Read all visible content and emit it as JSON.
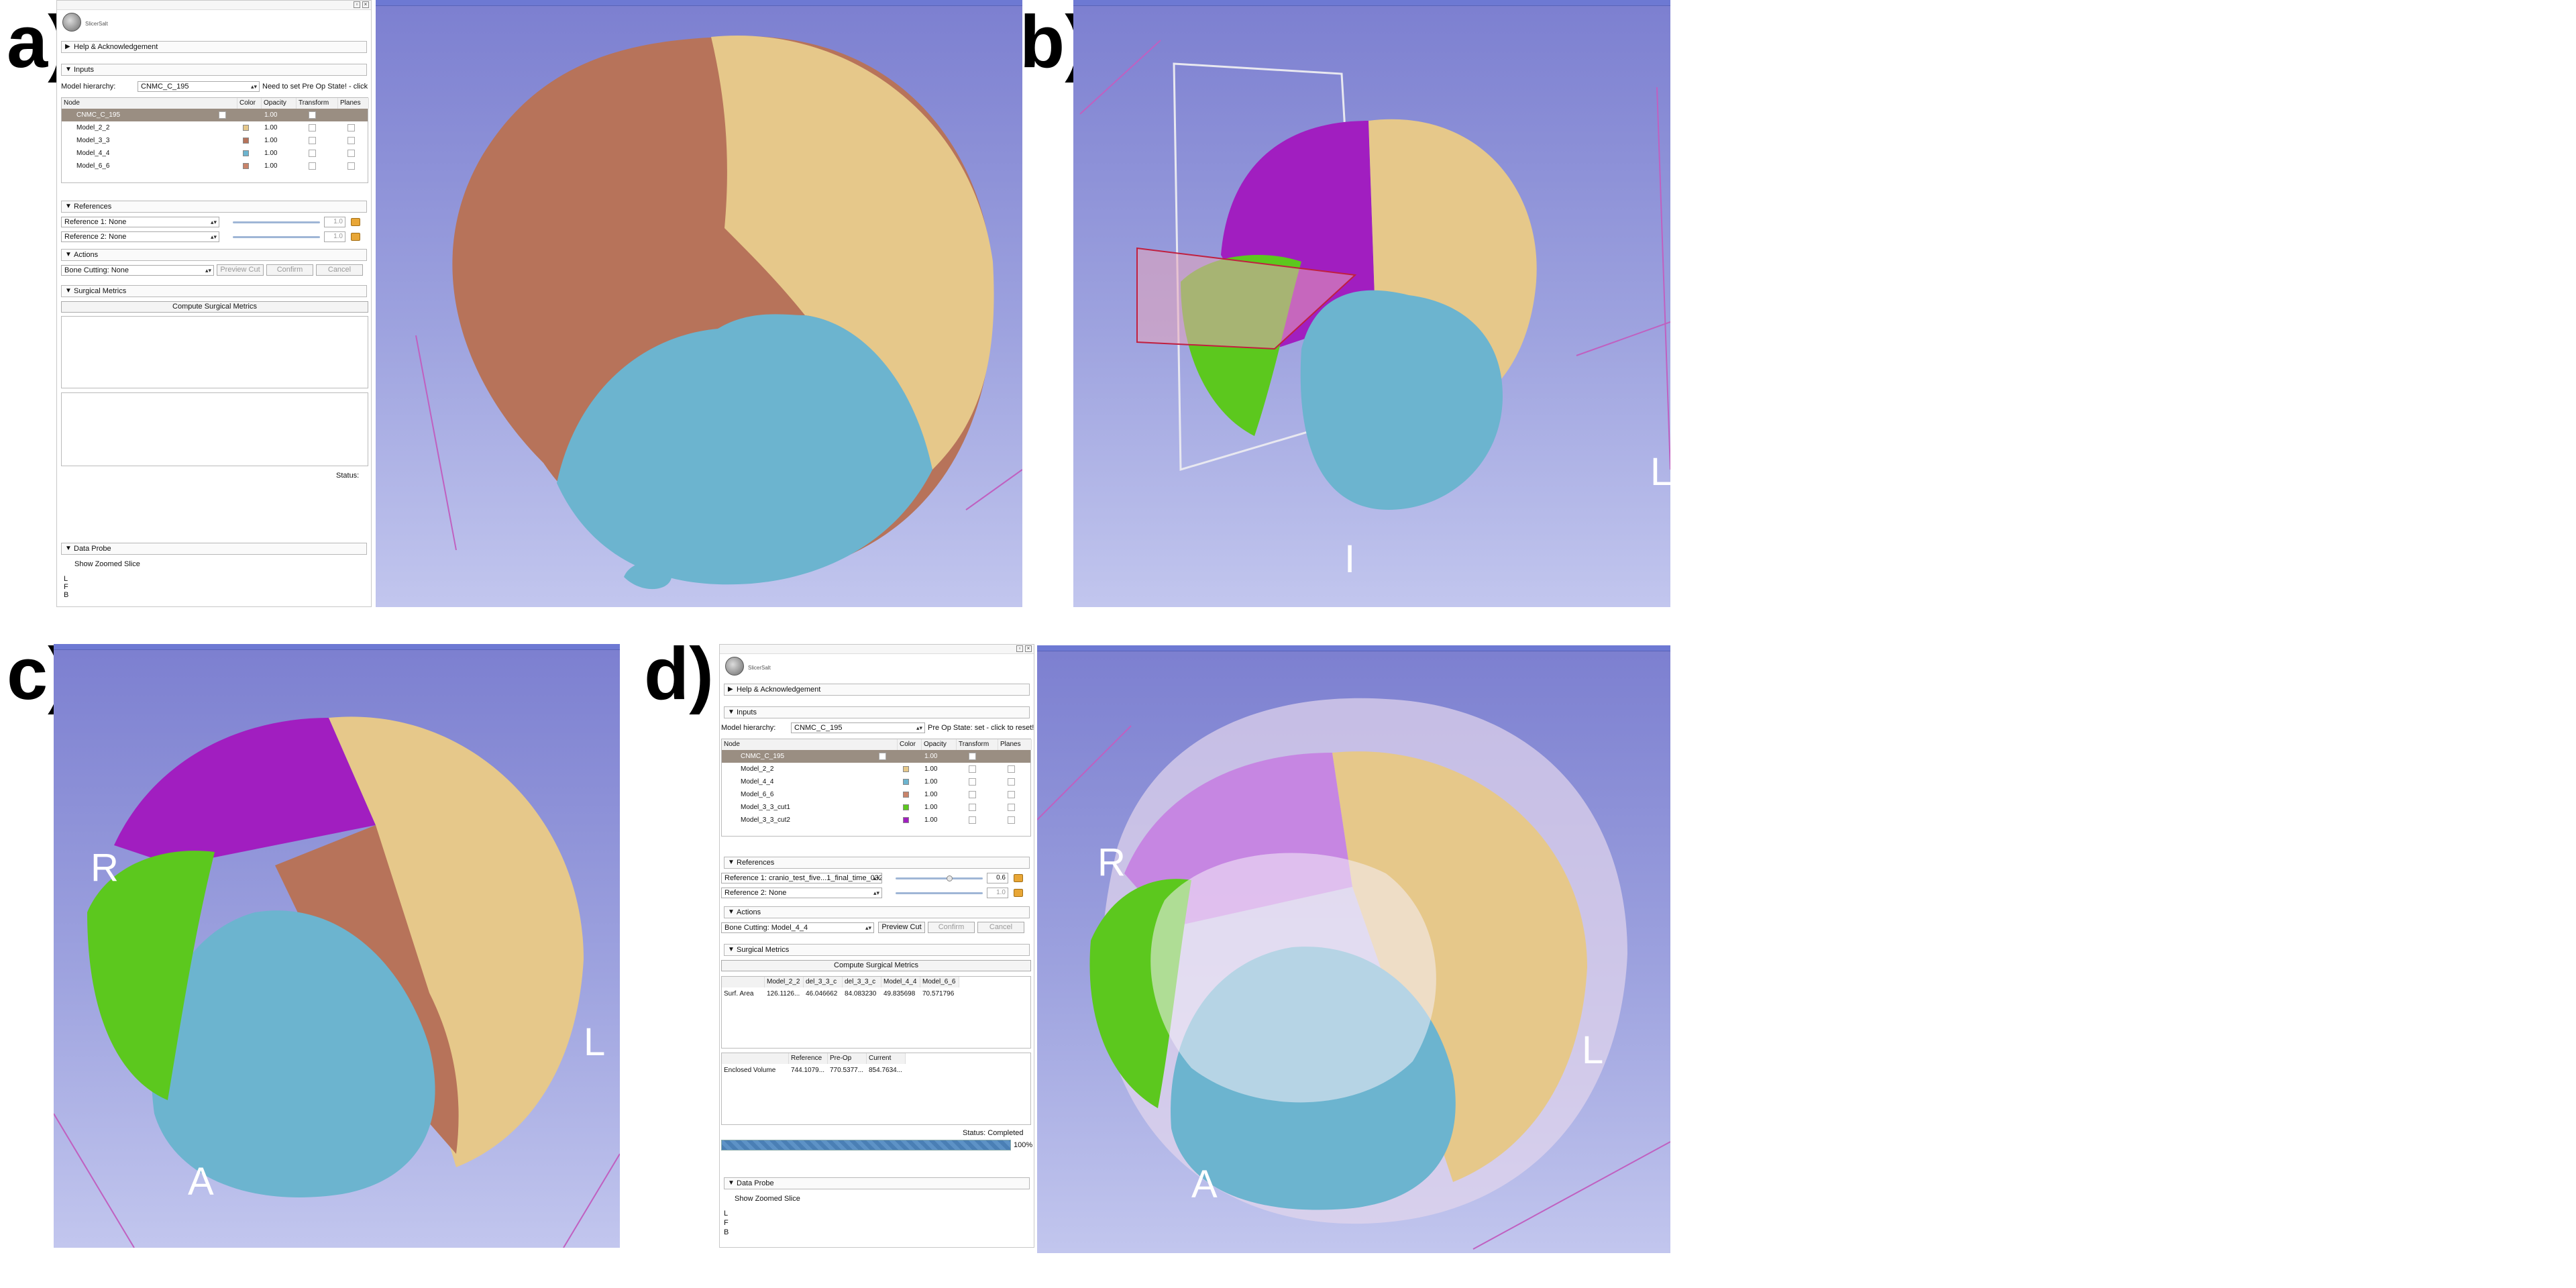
{
  "panel_labels": {
    "a": "a)",
    "b": "b)",
    "c": "c)",
    "d": "d)"
  },
  "colors": {
    "beige": "#e6c88a",
    "brown": "#b7735a",
    "blue": "#6cb4cf",
    "green": "#5cc81e",
    "purple": "#a11ec0",
    "selected_row": "#9a8e82",
    "view_top": "#6d79d3",
    "view_bottom": "#c2c6ee",
    "progress": "#4a7fb5"
  },
  "panel_a": {
    "logo_text": "SlicerSalt",
    "sections": {
      "help": "Help & Acknowledgement",
      "inputs": "Inputs",
      "references": "References",
      "actions": "Actions",
      "surgical_metrics": "Surgical Metrics",
      "data_probe": "Data Probe"
    },
    "model_hierarchy_label": "Model hierarchy:",
    "model_hierarchy_value": "CNMC_C_195",
    "pre_op_state": "Need to set Pre Op State! - click",
    "table_headers": [
      "Node",
      "Color",
      "Opacity",
      "Transform",
      "Planes"
    ],
    "rows": [
      {
        "name": "CNMC_C_195",
        "opacity": "1.00",
        "color": ""
      },
      {
        "name": "Model_2_2",
        "opacity": "1.00",
        "color": "#e6c88a"
      },
      {
        "name": "Model_3_3",
        "opacity": "1.00",
        "color": "#b7735a"
      },
      {
        "name": "Model_4_4",
        "opacity": "1.00",
        "color": "#6cb4cf"
      },
      {
        "name": "Model_6_6",
        "opacity": "1.00",
        "color": "#c9846a"
      }
    ],
    "reference1": "Reference 1: None",
    "reference2": "Reference 2: None",
    "ref_value1": "1.0",
    "ref_value2": "1.0",
    "bone_cutting": "Bone Cutting: None",
    "preview_cut": "Preview Cut",
    "confirm": "Confirm",
    "cancel": "Cancel",
    "compute": "Compute Surgical Metrics",
    "status": "Status:",
    "show_zoomed": "Show Zoomed Slice",
    "probe_lines": [
      "L",
      "F",
      "B"
    ]
  },
  "panel_b": {
    "label_L": "L",
    "label_I": "I"
  },
  "panel_c": {
    "label_L": "L",
    "label_A": "A",
    "label_R": "R"
  },
  "panel_d": {
    "logo_text": "SlicerSalt",
    "sections": {
      "help": "Help & Acknowledgement",
      "inputs": "Inputs",
      "references": "References",
      "actions": "Actions",
      "surgical_metrics": "Surgical Metrics",
      "data_probe": "Data Probe"
    },
    "model_hierarchy_label": "Model hierarchy:",
    "model_hierarchy_value": "CNMC_C_195",
    "pre_op_state": "Pre Op State: set - click to reset!",
    "table_headers": [
      "Node",
      "Color",
      "Opacity",
      "Transform",
      "Planes"
    ],
    "rows": [
      {
        "name": "CNMC_C_195",
        "opacity": "1.00",
        "color": ""
      },
      {
        "name": "Model_2_2",
        "opacity": "1.00",
        "color": "#e6c88a"
      },
      {
        "name": "Model_4_4",
        "opacity": "1.00",
        "color": "#6cb4cf"
      },
      {
        "name": "Model_6_6",
        "opacity": "1.00",
        "color": "#c9846a"
      },
      {
        "name": "Model_3_3_cut1",
        "opacity": "1.00",
        "color": "#5cc81e"
      },
      {
        "name": "Model_3_3_cut2",
        "opacity": "1.00",
        "color": "#a11ec0"
      }
    ],
    "reference1": "Reference 1: cranio_test_five...1_final_time_032",
    "reference2": "Reference 2: None",
    "ref_value1": "0.6",
    "ref_value2": "1.0",
    "bone_cutting": "Bone Cutting: Model_4_4",
    "preview_cut": "Preview Cut",
    "confirm": "Confirm",
    "cancel": "Cancel",
    "compute": "Compute Surgical Metrics",
    "metrics_headers": [
      "",
      "Model_2_2",
      "del_3_3_c",
      "del_3_3_c",
      "Model_4_4",
      "Model_6_6"
    ],
    "metrics_row": [
      "Surf. Area",
      "126.1126...",
      "46.046662",
      "84.083230",
      "49.835698",
      "70.571796"
    ],
    "volume_headers": [
      "",
      "Reference",
      "Pre-Op",
      "Current"
    ],
    "volume_row": [
      "Enclosed Volume",
      "744.1079...",
      "770.5377...",
      "854.7634..."
    ],
    "status": "Status: Completed",
    "progress_percent": 100,
    "progress_text": "100%",
    "show_zoomed": "Show Zoomed Slice",
    "probe_lines": [
      "L",
      "F",
      "B"
    ]
  }
}
